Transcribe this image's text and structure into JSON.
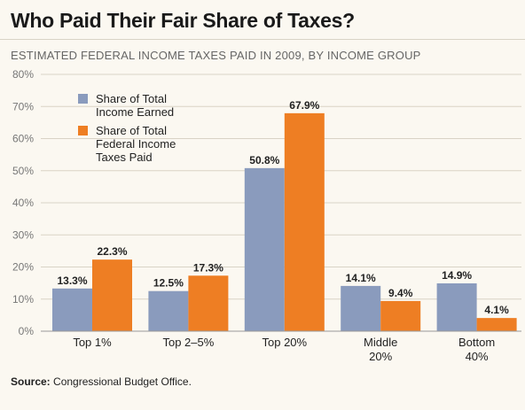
{
  "title": "Who Paid Their Fair Share of Taxes?",
  "subtitle": "ESTIMATED FEDERAL INCOME TAXES PAID IN 2009, BY INCOME GROUP",
  "source_label": "Source:",
  "source_text": "Congressional Budget Office.",
  "colors": {
    "income": "#8a9bbd",
    "taxes": "#ee7e23",
    "grid": "#d9d3c6",
    "background": "#fbf8f1"
  },
  "chart_data": {
    "type": "bar",
    "categories": [
      "Top 1%",
      "Top 2–5%",
      "Top 20%",
      "Middle\n20%",
      "Bottom\n40%"
    ],
    "series": [
      {
        "name": "Share of Total\nIncome Earned",
        "values": [
          13.3,
          12.5,
          50.8,
          14.1,
          14.9
        ],
        "labels": [
          "13.3%",
          "12.5%",
          "50.8%",
          "14.1%",
          "14.9%"
        ],
        "color": "#8a9bbd"
      },
      {
        "name": "Share of Total\nFederal Income\nTaxes Paid",
        "values": [
          22.3,
          17.3,
          67.9,
          9.4,
          4.1
        ],
        "labels": [
          "22.3%",
          "17.3%",
          "67.9%",
          "9.4%",
          "4.1%"
        ],
        "color": "#ee7e23"
      }
    ],
    "ylim": [
      0,
      80
    ],
    "yticks": [
      "0%",
      "10%",
      "20%",
      "30%",
      "40%",
      "50%",
      "60%",
      "70%",
      "80%"
    ],
    "grid": true,
    "legend_position": "top-left"
  }
}
